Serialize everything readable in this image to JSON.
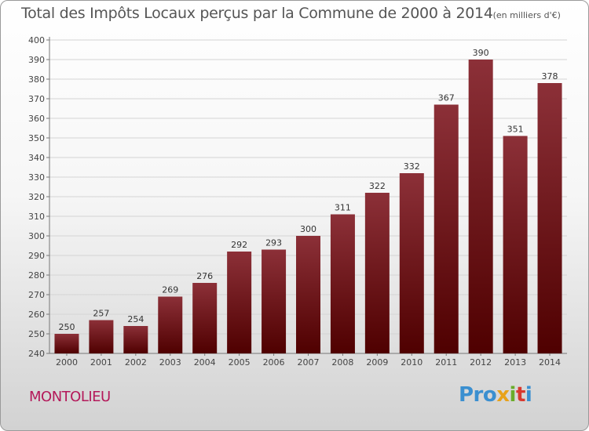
{
  "title": {
    "main": "Total des Impôts Locaux perçus par la Commune de 2000 à 2014",
    "unit": "(en milliers d'€)"
  },
  "commune": "MONTOLIEU",
  "logo": {
    "text": "Proxiti",
    "p1": "Pro",
    "p2": "x",
    "p3": "i",
    "p4": "t",
    "p5": "i"
  },
  "colors": {
    "bar_top": "#8c3038",
    "bar_bottom": "#4f0000",
    "commune": "#b4195a"
  },
  "chart_data": {
    "type": "bar",
    "title": "Total des Impôts Locaux perçus par la Commune de 2000 à 2014",
    "xlabel": "",
    "ylabel": "",
    "ylim": [
      240,
      400
    ],
    "yticks": [
      240,
      250,
      260,
      270,
      280,
      290,
      300,
      310,
      320,
      330,
      340,
      350,
      360,
      370,
      380,
      390,
      400
    ],
    "grid": true,
    "categories": [
      "2000",
      "2001",
      "2002",
      "2003",
      "2004",
      "2005",
      "2006",
      "2007",
      "2008",
      "2009",
      "2010",
      "2011",
      "2012",
      "2013",
      "2014"
    ],
    "values": [
      250,
      257,
      254,
      269,
      276,
      292,
      293,
      300,
      311,
      322,
      332,
      367,
      390,
      351,
      378
    ]
  }
}
